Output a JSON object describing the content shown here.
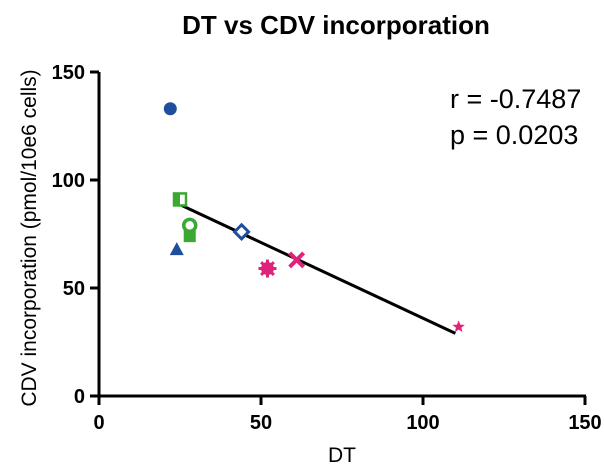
{
  "chart_data": {
    "type": "scatter",
    "title": "DT vs CDV incorporation",
    "xlabel": "DT",
    "ylabel": "CDV incorporation (pmol/10e6 cells)",
    "xlim": [
      0,
      150
    ],
    "ylim": [
      0,
      150
    ],
    "xticks": [
      0,
      50,
      100,
      150
    ],
    "yticks": [
      0,
      50,
      100,
      150
    ],
    "grid": false,
    "annotations": [
      "r = -0.7487",
      "p = 0.0203"
    ],
    "points": [
      {
        "x": 22,
        "y": 133,
        "marker": "circle",
        "color": "#1f4e9c",
        "filled": true
      },
      {
        "x": 24,
        "y": 68,
        "marker": "triangle",
        "color": "#1f4e9c",
        "filled": true
      },
      {
        "x": 44,
        "y": 76,
        "marker": "diamond",
        "color": "#1f4e9c",
        "filled": false
      },
      {
        "x": 25,
        "y": 91,
        "marker": "square-half",
        "color": "#3aa832",
        "filled": false
      },
      {
        "x": 28,
        "y": 74,
        "marker": "square",
        "color": "#3aa832",
        "filled": true
      },
      {
        "x": 28,
        "y": 79,
        "marker": "circle",
        "color": "#3aa832",
        "filled": false
      },
      {
        "x": 52,
        "y": 59,
        "marker": "asterisk-circle",
        "color": "#e0237a",
        "filled": true
      },
      {
        "x": 61,
        "y": 63,
        "marker": "cross",
        "color": "#e0237a",
        "filled": true
      },
      {
        "x": 111,
        "y": 32,
        "marker": "star",
        "color": "#e0237a",
        "filled": true
      }
    ],
    "fit_line": {
      "x1": 23,
      "y1": 90,
      "x2": 110,
      "y2": 29,
      "color": "#000000"
    }
  }
}
